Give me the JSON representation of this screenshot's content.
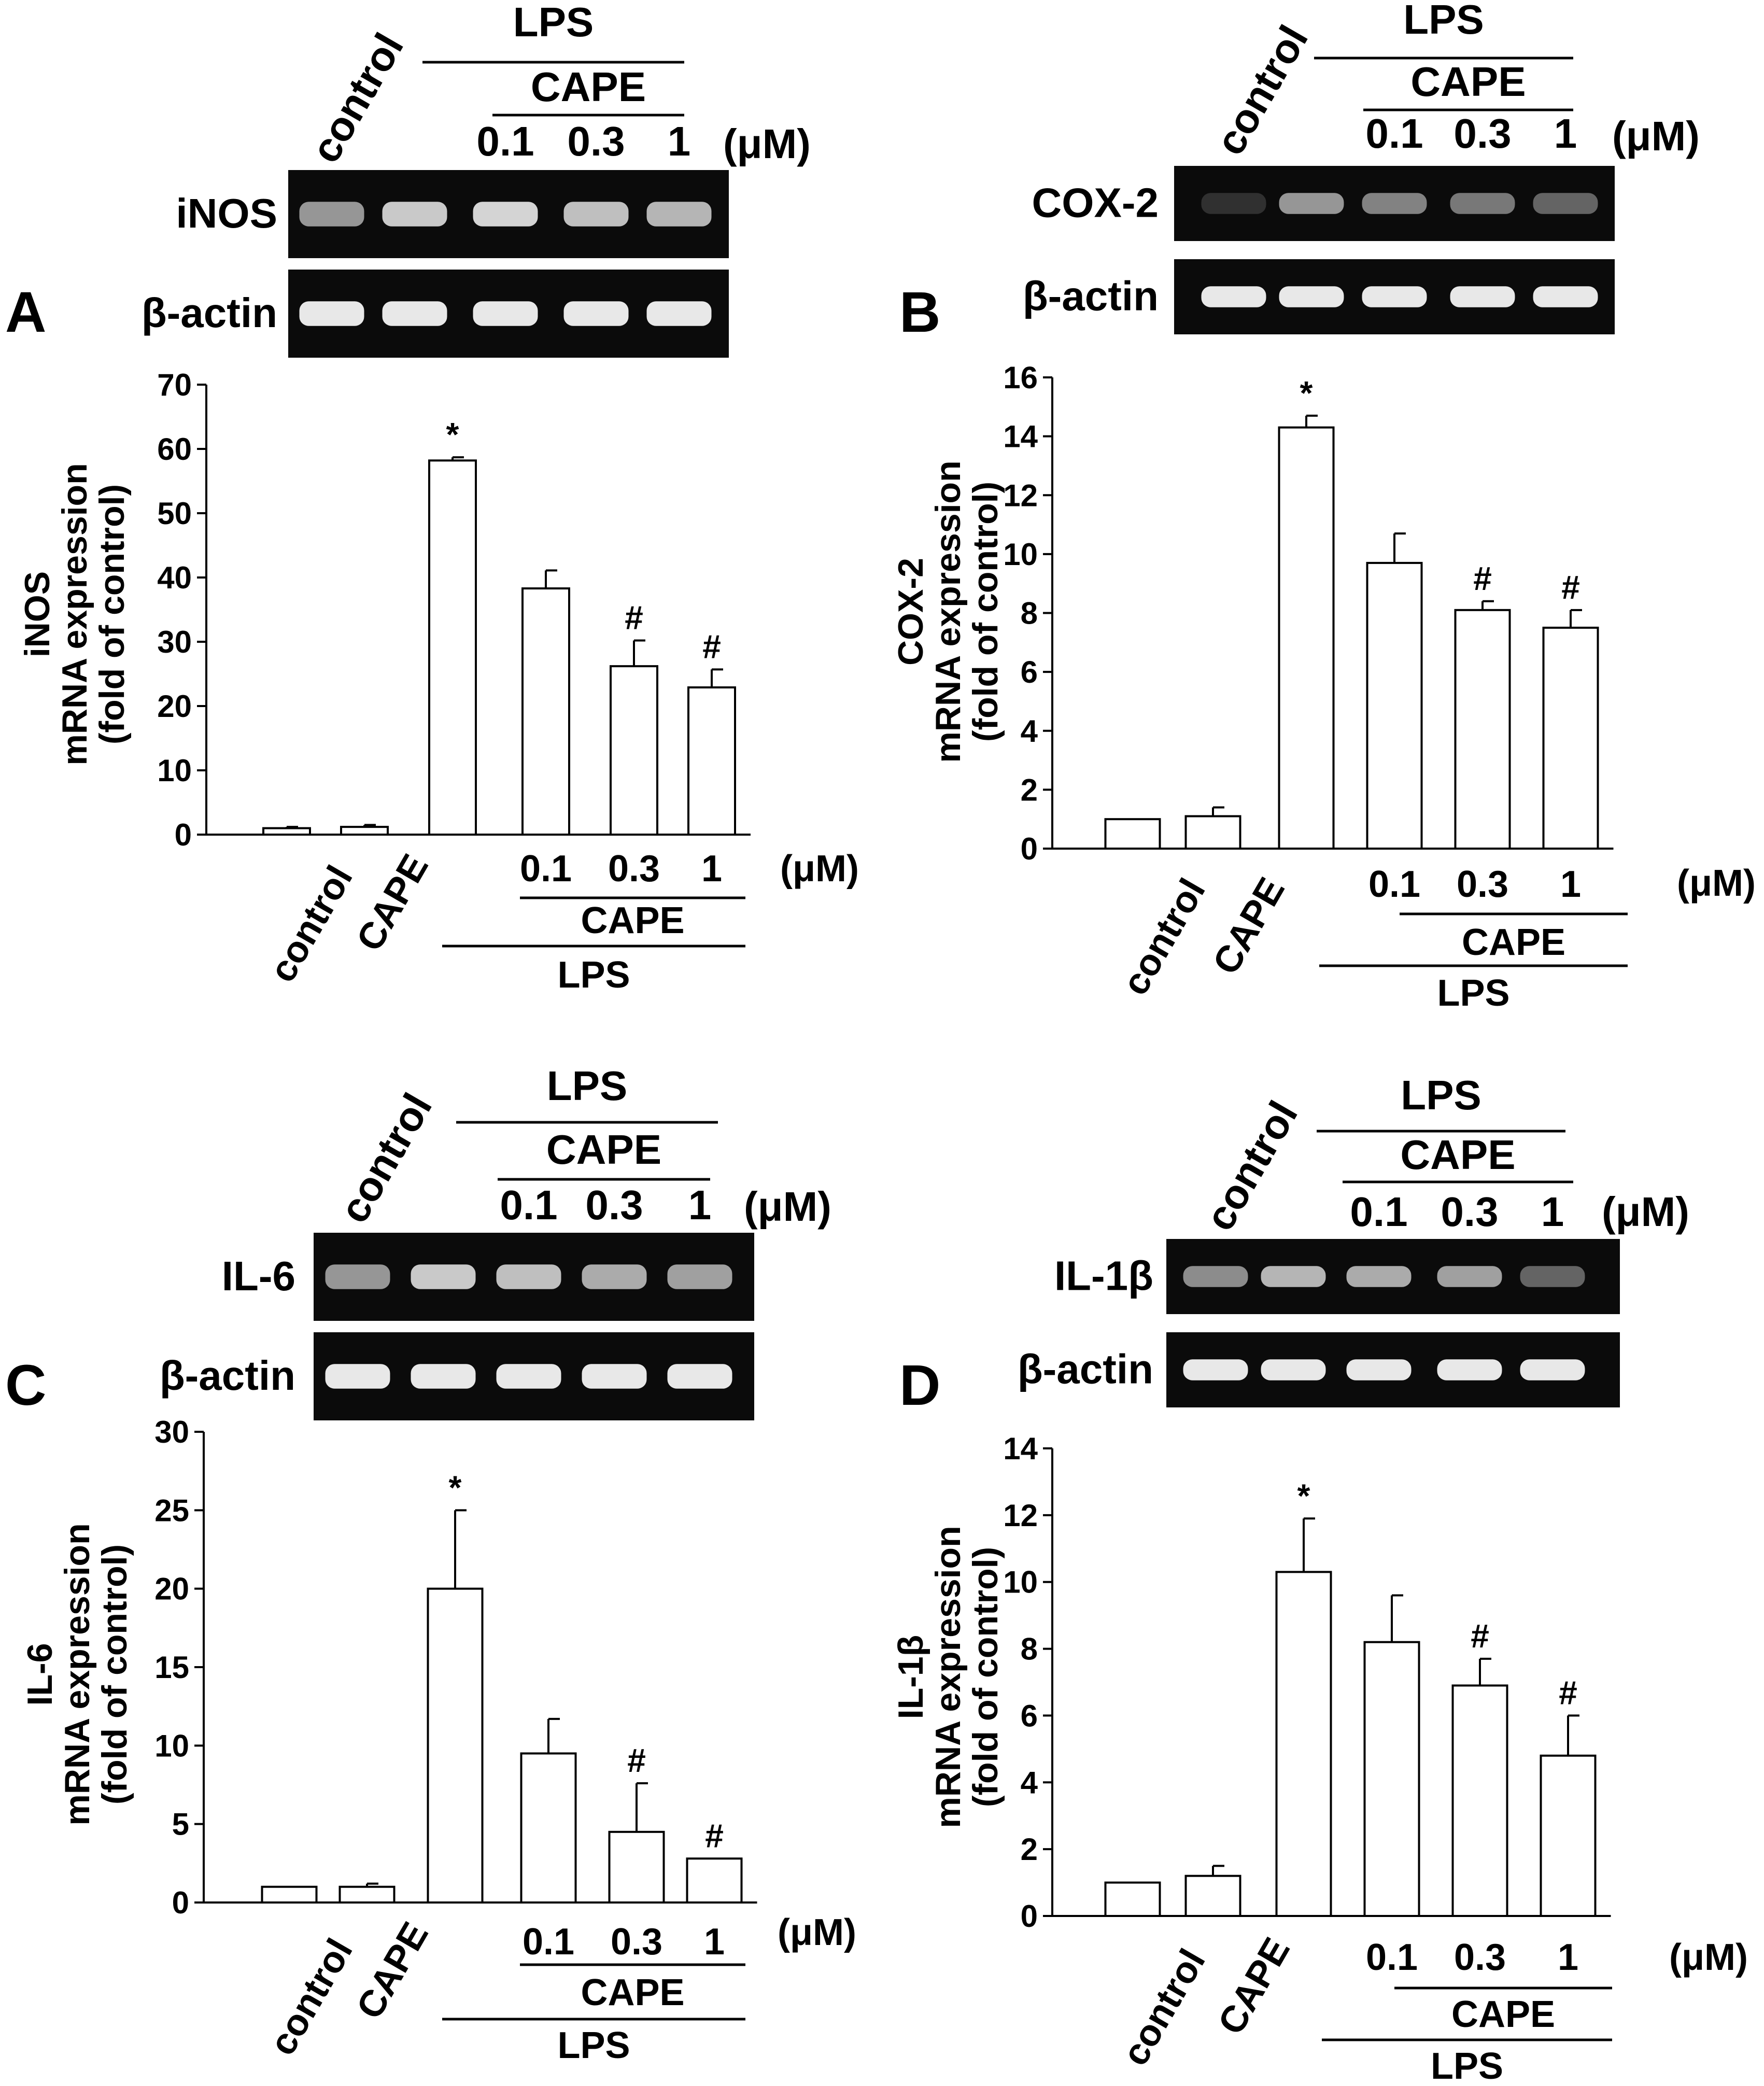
{
  "panels": [
    {
      "letter": "A",
      "gel": {
        "lane_labels": [
          "control",
          "",
          "0.1",
          "0.3",
          "1"
        ],
        "unit": "(μM)",
        "group_lps": "LPS",
        "group_cape": "CAPE",
        "target": "iNOS",
        "loading": "β-actin",
        "target_intensity": [
          0.55,
          0.8,
          0.85,
          0.75,
          0.7
        ],
        "loading_intensity": [
          0.95,
          0.95,
          0.95,
          0.95,
          0.95
        ]
      },
      "chart_data": {
        "type": "bar",
        "categories": [
          "control",
          "CAPE",
          "0.1",
          "0.3",
          "1"
        ],
        "slot_index": [
          0,
          1,
          2,
          3,
          4,
          5
        ],
        "bars": [
          {
            "category": "control",
            "value": 1.0,
            "error": 0.2,
            "sig": ""
          },
          {
            "category": "CAPE",
            "value": 1.2,
            "error": 0.3,
            "sig": ""
          },
          {
            "category": "",
            "value": 58.2,
            "error": 0.5,
            "sig": "*"
          },
          {
            "category": "0.1",
            "value": 38.3,
            "error": 2.8,
            "sig": ""
          },
          {
            "category": "0.3",
            "value": 26.2,
            "error": 4.0,
            "sig": "#"
          },
          {
            "category": "1",
            "value": 22.9,
            "error": 2.8,
            "sig": "#"
          }
        ],
        "ylabel_lines": [
          "iNOS",
          "mRNA expression",
          "(fold of control)"
        ],
        "ylim": [
          0,
          70
        ],
        "yticks": [
          0,
          10,
          20,
          30,
          40,
          50,
          60,
          70
        ],
        "unit": "(μM)",
        "group_cape": "CAPE",
        "group_lps": "LPS",
        "grid": false
      }
    },
    {
      "letter": "B",
      "gel": {
        "lane_labels": [
          "control",
          "",
          "0.1",
          "0.3",
          "1"
        ],
        "unit": "(μM)",
        "group_lps": "LPS",
        "group_cape": "CAPE",
        "target": "COX-2",
        "loading": "β-actin",
        "target_intensity": [
          0.05,
          0.55,
          0.45,
          0.4,
          0.3
        ],
        "loading_intensity": [
          0.95,
          0.95,
          0.95,
          0.95,
          0.95
        ]
      },
      "chart_data": {
        "type": "bar",
        "categories": [
          "control",
          "CAPE",
          "0.1",
          "0.3",
          "1"
        ],
        "bars": [
          {
            "category": "control",
            "value": 1.0,
            "error": 0.0,
            "sig": ""
          },
          {
            "category": "CAPE",
            "value": 1.1,
            "error": 0.3,
            "sig": ""
          },
          {
            "category": "",
            "value": 14.3,
            "error": 0.4,
            "sig": "*"
          },
          {
            "category": "0.1",
            "value": 9.7,
            "error": 1.0,
            "sig": ""
          },
          {
            "category": "0.3",
            "value": 8.1,
            "error": 0.3,
            "sig": "#"
          },
          {
            "category": "1",
            "value": 7.5,
            "error": 0.6,
            "sig": "#"
          }
        ],
        "ylabel_lines": [
          "COX-2",
          "mRNA expression",
          "(fold of control)"
        ],
        "ylim": [
          0,
          16
        ],
        "yticks": [
          0,
          2,
          4,
          6,
          8,
          10,
          12,
          14,
          16
        ],
        "unit": "(μM)",
        "group_cape": "CAPE",
        "group_lps": "LPS",
        "grid": false
      }
    },
    {
      "letter": "C",
      "gel": {
        "lane_labels": [
          "control",
          "",
          "0.1",
          "0.3",
          "1"
        ],
        "unit": "(μM)",
        "group_lps": "LPS",
        "group_cape": "CAPE",
        "target": "IL-6",
        "loading": "β-actin",
        "target_intensity": [
          0.55,
          0.8,
          0.75,
          0.65,
          0.6
        ],
        "loading_intensity": [
          0.95,
          0.95,
          0.95,
          0.95,
          0.95
        ]
      },
      "chart_data": {
        "type": "bar",
        "categories": [
          "control",
          "CAPE",
          "0.1",
          "0.3",
          "1"
        ],
        "bars": [
          {
            "category": "control",
            "value": 1.0,
            "error": 0.0,
            "sig": ""
          },
          {
            "category": "CAPE",
            "value": 1.0,
            "error": 0.2,
            "sig": ""
          },
          {
            "category": "",
            "value": 20.0,
            "error": 5.0,
            "sig": "*"
          },
          {
            "category": "0.1",
            "value": 9.5,
            "error": 2.2,
            "sig": ""
          },
          {
            "category": "0.3",
            "value": 4.5,
            "error": 3.1,
            "sig": "#"
          },
          {
            "category": "1",
            "value": 2.8,
            "error": 0.0,
            "sig": "#"
          }
        ],
        "ylabel_lines": [
          "IL-6",
          "mRNA expression",
          "(fold of control)"
        ],
        "ylim": [
          0,
          30
        ],
        "yticks": [
          0,
          5,
          10,
          15,
          20,
          25,
          30
        ],
        "unit": "(μM)",
        "group_cape": "CAPE",
        "group_lps": "LPS",
        "grid": false
      }
    },
    {
      "letter": "D",
      "gel": {
        "lane_labels": [
          "control",
          "",
          "0.1",
          "0.3",
          "1"
        ],
        "unit": "(μM)",
        "group_lps": "LPS",
        "group_cape": "CAPE",
        "target": "IL-1β",
        "loading": "β-actin",
        "target_intensity": [
          0.5,
          0.7,
          0.65,
          0.6,
          0.3
        ],
        "loading_intensity": [
          0.95,
          0.95,
          0.95,
          0.95,
          0.95
        ]
      },
      "chart_data": {
        "type": "bar",
        "categories": [
          "control",
          "CAPE",
          "0.1",
          "0.3",
          "1"
        ],
        "bars": [
          {
            "category": "control",
            "value": 1.0,
            "error": 0.0,
            "sig": ""
          },
          {
            "category": "CAPE",
            "value": 1.2,
            "error": 0.3,
            "sig": ""
          },
          {
            "category": "",
            "value": 10.3,
            "error": 1.6,
            "sig": "*"
          },
          {
            "category": "0.1",
            "value": 8.2,
            "error": 1.4,
            "sig": ""
          },
          {
            "category": "0.3",
            "value": 6.9,
            "error": 0.8,
            "sig": "#"
          },
          {
            "category": "1",
            "value": 4.8,
            "error": 1.2,
            "sig": "#"
          }
        ],
        "ylabel_lines": [
          "IL-1β",
          "mRNA expression",
          "(fold of control)"
        ],
        "ylim": [
          0,
          14
        ],
        "yticks": [
          0,
          2,
          4,
          6,
          8,
          10,
          12,
          14
        ],
        "unit": "(μM)",
        "group_cape": "CAPE",
        "group_lps": "LPS",
        "grid": false
      }
    }
  ]
}
